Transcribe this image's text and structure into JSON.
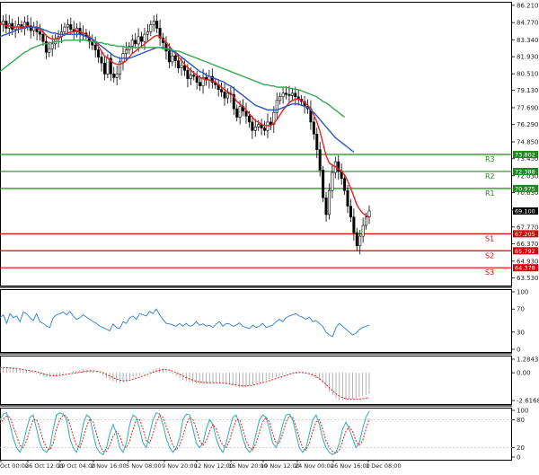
{
  "chart_data": {
    "type": "line",
    "colors": {
      "candle_bull": "#000000",
      "candle_bear": "#000000",
      "ma_fast": "#e8201e",
      "ma_mid": "#2a56c6",
      "ma_slow": "#35a852",
      "resistance": "#1d8a1d",
      "support": "#e00000",
      "rsi": "#2a7fd4",
      "macd_hist": "#a8a8a8",
      "macd_signal": "#e02020",
      "stoch_k": "#2ab0b0",
      "stoch_d": "#e02020",
      "current_price": "#000000"
    },
    "price_axis": {
      "ylim": [
        62.9,
        86.5
      ],
      "ticks": [
        "86.210",
        "84.770",
        "83.340",
        "81.930",
        "80.510",
        "79.130",
        "77.690",
        "76.290",
        "74.850",
        "73.450",
        "72.030",
        "70.630",
        "69.190",
        "67.770",
        "66.370",
        "64.930",
        "63.530"
      ]
    },
    "x_axis": {
      "tick_labels": [
        "Oct 00:00",
        "26 Oct 12:00",
        "29 Oct 04:00",
        "2 Nov 16:00",
        "5 Nov 08:00",
        "9 Nov 20:00",
        "12 Nov 12:00",
        "16 Nov 20:00",
        "19 Nov 12:00",
        "24 Nov 00:00",
        "26 Nov 16:00",
        "1 Dec 08:00"
      ]
    },
    "current_price": {
      "label": "69.100",
      "value": 69.1
    },
    "levels": [
      {
        "name": "R3",
        "value": 73.802,
        "label": "73.802",
        "kind": "resistance"
      },
      {
        "name": "R2",
        "value": 72.388,
        "label": "72.388",
        "kind": "resistance"
      },
      {
        "name": "R1",
        "value": 70.975,
        "label": "70.975",
        "kind": "resistance"
      },
      {
        "name": "S1",
        "value": 67.205,
        "label": "67.205",
        "kind": "support"
      },
      {
        "name": "S2",
        "value": 65.792,
        "label": "65.792",
        "kind": "support"
      },
      {
        "name": "S3",
        "value": 64.378,
        "label": "64.378",
        "kind": "support"
      }
    ],
    "series": [
      {
        "name": "price",
        "values": [
          84.6,
          84.9,
          84.3,
          84.7,
          84.2,
          84.4,
          84.6,
          84.3,
          84.8,
          84.5,
          84.1,
          84.4,
          84.0,
          83.8,
          83.2,
          82.3,
          82.6,
          83.0,
          83.4,
          83.6,
          84.0,
          84.4,
          84.6,
          84.2,
          84.0,
          84.3,
          83.8,
          83.9,
          83.6,
          83.2,
          82.9,
          82.5,
          81.9,
          81.4,
          80.5,
          81.8,
          80.5,
          80.2,
          80.5,
          81.5,
          82.2,
          82.5,
          82.8,
          83.3,
          83.0,
          83.6,
          83.2,
          83.8,
          84.0,
          84.6,
          84.9,
          84.3,
          83.5,
          83.1,
          82.4,
          81.5,
          82.0,
          81.6,
          81.0,
          81.2,
          80.8,
          80.1,
          80.4,
          80.3,
          79.8,
          79.5,
          80.2,
          80.0,
          80.3,
          79.8,
          79.6,
          79.2,
          79.0,
          78.5,
          78.9,
          78.8,
          77.6,
          76.9,
          77.8,
          77.4,
          77.0,
          76.5,
          75.8,
          76.1,
          76.3,
          76.0,
          75.8,
          76.5,
          76.3,
          77.3,
          78.3,
          78.6,
          78.9,
          78.8,
          78.7,
          78.9,
          78.6,
          78.4,
          78.2,
          77.8,
          77.6,
          76.5,
          75.5,
          74.2,
          72.5,
          70.2,
          68.8,
          70.8,
          72.3,
          73.2,
          72.4,
          71.8,
          70.8,
          69.5,
          68.6,
          67.3,
          66.2,
          67.0,
          67.9,
          68.6,
          69.1
        ]
      },
      {
        "name": "ma_fast",
        "values": [
          84.7,
          84.6,
          84.5,
          84.5,
          84.4,
          84.4,
          84.4,
          84.4,
          84.4,
          84.5,
          84.4,
          84.4,
          84.3,
          84.2,
          84.0,
          83.7,
          83.5,
          83.4,
          83.4,
          83.5,
          83.6,
          83.8,
          83.9,
          84.0,
          84.0,
          84.1,
          84.0,
          83.9,
          83.8,
          83.6,
          83.4,
          83.1,
          82.8,
          82.4,
          82.0,
          81.8,
          81.6,
          81.4,
          81.3,
          81.3,
          81.4,
          81.6,
          81.9,
          82.2,
          82.4,
          82.6,
          82.8,
          83.0,
          83.2,
          83.4,
          83.6,
          83.7,
          83.6,
          83.4,
          83.1,
          82.8,
          82.5,
          82.2,
          81.9,
          81.6,
          81.3,
          81.0,
          80.8,
          80.6,
          80.4,
          80.2,
          80.1,
          80.0,
          80.0,
          79.9,
          79.8,
          79.6,
          79.4,
          79.2,
          79.0,
          78.9,
          78.6,
          78.2,
          78.0,
          77.8,
          77.5,
          77.2,
          76.9,
          76.6,
          76.5,
          76.3,
          76.2,
          76.2,
          76.2,
          76.4,
          76.7,
          77.1,
          77.5,
          77.8,
          78.1,
          78.3,
          78.4,
          78.4,
          78.3,
          78.1,
          77.9,
          77.6,
          77.1,
          76.5,
          75.7,
          74.7,
          73.7,
          73.1,
          72.9,
          72.8,
          72.6,
          72.4,
          72.1,
          71.6,
          71.0,
          70.3,
          69.6,
          69.2,
          68.9,
          68.7,
          68.6
        ]
      },
      {
        "name": "ma_mid",
        "values": [
          83.6,
          83.7,
          83.8,
          83.9,
          84.0,
          84.1,
          84.2,
          84.3,
          84.3,
          84.4,
          84.4,
          84.4,
          84.4,
          84.3,
          84.2,
          84.1,
          84.0,
          83.9,
          83.9,
          83.8,
          83.8,
          83.8,
          83.8,
          83.8,
          83.8,
          83.8,
          83.8,
          83.7,
          83.6,
          83.5,
          83.4,
          83.2,
          83.0,
          82.8,
          82.6,
          82.4,
          82.2,
          82.0,
          81.9,
          81.8,
          81.8,
          81.8,
          81.8,
          81.9,
          82.0,
          82.1,
          82.2,
          82.3,
          82.4,
          82.5,
          82.6,
          82.7,
          82.7,
          82.7,
          82.6,
          82.5,
          82.4,
          82.3,
          82.1,
          81.9,
          81.7,
          81.5,
          81.3,
          81.1,
          80.9,
          80.7,
          80.6,
          80.4,
          80.3,
          80.2,
          80.1,
          80.0,
          79.9,
          79.8,
          79.6,
          79.5,
          79.3,
          79.1,
          78.9,
          78.7,
          78.5,
          78.3,
          78.1,
          77.9,
          77.8,
          77.7,
          77.6,
          77.5,
          77.5,
          77.5,
          77.5,
          77.6,
          77.7,
          77.8,
          77.9,
          78.0,
          78.0,
          78.0,
          77.9,
          77.8,
          77.7,
          77.5,
          77.3,
          77.0,
          76.7,
          76.4,
          76.1,
          75.8,
          75.5,
          75.2,
          75.0,
          74.8,
          74.6,
          74.4,
          74.2,
          74.0
        ]
      },
      {
        "name": "ma_slow",
        "values": [
          80.7,
          80.9,
          81.1,
          81.3,
          81.5,
          81.7,
          81.9,
          82.1,
          82.3,
          82.4,
          82.6,
          82.7,
          82.8,
          82.9,
          83.0,
          83.0,
          83.1,
          83.1,
          83.2,
          83.2,
          83.2,
          83.3,
          83.3,
          83.3,
          83.3,
          83.3,
          83.3,
          83.3,
          83.3,
          83.2,
          83.2,
          83.2,
          83.1,
          83.1,
          83.0,
          83.0,
          82.9,
          82.9,
          82.8,
          82.8,
          82.8,
          82.7,
          82.7,
          82.7,
          82.7,
          82.7,
          82.7,
          82.7,
          82.7,
          82.7,
          82.7,
          82.7,
          82.7,
          82.6,
          82.6,
          82.6,
          82.5,
          82.4,
          82.4,
          82.3,
          82.2,
          82.1,
          82.0,
          81.9,
          81.8,
          81.7,
          81.6,
          81.5,
          81.4,
          81.3,
          81.2,
          81.1,
          81.0,
          80.9,
          80.8,
          80.7,
          80.6,
          80.5,
          80.4,
          80.3,
          80.2,
          80.1,
          80.0,
          79.9,
          79.8,
          79.7,
          79.6,
          79.6,
          79.5,
          79.5,
          79.4,
          79.4,
          79.4,
          79.4,
          79.3,
          79.3,
          79.2,
          79.2,
          79.1,
          79.0,
          78.9,
          78.8,
          78.7,
          78.6,
          78.4,
          78.2,
          78.1,
          77.9,
          77.7,
          77.5,
          77.3,
          77.1,
          76.9
        ]
      }
    ],
    "rsi": {
      "axis_labels": [
        "100",
        "70",
        "30",
        "0"
      ],
      "range": [
        0,
        100
      ],
      "values": [
        55,
        60,
        45,
        62,
        55,
        58,
        48,
        65,
        62,
        55,
        50,
        62,
        48,
        45,
        40,
        38,
        55,
        60,
        62,
        65,
        60,
        66,
        58,
        52,
        55,
        60,
        56,
        52,
        48,
        45,
        40,
        38,
        35,
        32,
        44,
        38,
        36,
        48,
        45,
        55,
        58,
        52,
        62,
        60,
        58,
        66,
        62,
        70,
        60,
        52,
        45,
        44,
        42,
        40,
        45,
        40,
        45,
        40,
        42,
        48,
        42,
        44,
        40,
        42,
        38,
        44,
        48,
        40,
        45,
        44,
        40,
        42,
        46,
        40,
        38,
        36,
        42,
        38,
        40,
        45,
        38,
        40,
        42,
        48,
        52,
        48,
        55,
        58,
        60,
        62,
        58,
        56,
        52,
        56,
        48,
        50,
        45,
        40,
        30,
        25,
        22,
        38,
        45,
        40,
        35,
        30,
        25,
        28,
        34,
        38,
        40,
        42
      ]
    },
    "macd": {
      "axis_labels": [
        "1.2843",
        "0.00",
        "-2.6168"
      ],
      "range": [
        -2.6168,
        1.2843
      ],
      "hist": [
        0.6,
        0.55,
        0.5,
        0.45,
        0.4,
        0.35,
        0.3,
        0.3,
        0.25,
        0.2,
        0.1,
        -0.1,
        -0.2,
        -0.3,
        -0.4,
        -0.4,
        -0.35,
        -0.3,
        -0.2,
        -0.1,
        -0.05,
        0.05,
        0.1,
        0.2,
        0.25,
        0.3,
        0.3,
        0.25,
        0.2,
        0.1,
        -0.1,
        -0.3,
        -0.5,
        -0.6,
        -0.8,
        -0.9,
        -1.0,
        -0.9,
        -0.8,
        -0.6,
        -0.4,
        -0.3,
        -0.2,
        -0.1,
        0.05,
        0.15,
        0.3,
        0.4,
        0.5,
        0.4,
        0.3,
        0.1,
        -0.1,
        -0.3,
        -0.5,
        -0.7,
        -0.8,
        -0.9,
        -0.95,
        -1.0,
        -1.05,
        -1.05,
        -1.0,
        -0.95,
        -0.9,
        -0.9,
        -0.95,
        -1.0,
        -1.05,
        -1.1,
        -1.2,
        -1.3,
        -1.4,
        -1.4,
        -1.3,
        -1.2,
        -1.1,
        -1.0,
        -0.9,
        -0.8,
        -0.7,
        -0.6,
        -0.5,
        -0.4,
        -0.3,
        -0.2,
        -0.1,
        -0.05,
        0.05,
        0.1,
        0.15,
        0.1,
        0.05,
        -0.1,
        -0.3,
        -0.5,
        -0.7,
        -1.0,
        -1.4,
        -1.8,
        -2.1,
        -2.4,
        -2.6,
        -2.6,
        -2.55,
        -2.5,
        -2.45,
        -2.4,
        -2.3,
        -2.2,
        -2.1,
        -2.0
      ],
      "signal": [
        0.5,
        0.5,
        0.48,
        0.45,
        0.42,
        0.4,
        0.35,
        0.3,
        0.25,
        0.2,
        0.15,
        0.1,
        0.0,
        -0.1,
        -0.2,
        -0.25,
        -0.28,
        -0.28,
        -0.25,
        -0.2,
        -0.15,
        -0.1,
        -0.05,
        0.0,
        0.05,
        0.1,
        0.15,
        0.18,
        0.18,
        0.15,
        0.1,
        0.0,
        -0.15,
        -0.3,
        -0.45,
        -0.6,
        -0.7,
        -0.75,
        -0.75,
        -0.7,
        -0.6,
        -0.5,
        -0.4,
        -0.3,
        -0.2,
        -0.1,
        0.05,
        0.15,
        0.25,
        0.3,
        0.3,
        0.25,
        0.15,
        0.0,
        -0.15,
        -0.3,
        -0.45,
        -0.6,
        -0.7,
        -0.8,
        -0.85,
        -0.9,
        -0.95,
        -0.95,
        -0.95,
        -0.95,
        -0.95,
        -0.97,
        -1.0,
        -1.05,
        -1.1,
        -1.15,
        -1.2,
        -1.25,
        -1.25,
        -1.22,
        -1.18,
        -1.1,
        -1.0,
        -0.92,
        -0.85,
        -0.75,
        -0.65,
        -0.55,
        -0.45,
        -0.35,
        -0.25,
        -0.15,
        -0.05,
        0.0,
        0.02,
        0.02,
        -0.02,
        -0.1,
        -0.2,
        -0.35,
        -0.55,
        -0.8,
        -1.1,
        -1.4,
        -1.7,
        -2.0,
        -2.2,
        -2.35,
        -2.45,
        -2.5,
        -2.5,
        -2.5,
        -2.48,
        -2.45,
        -2.4,
        -2.35
      ]
    },
    "stochastic": {
      "axis_labels": [
        "100",
        "80",
        "20",
        "0"
      ],
      "range": [
        0,
        100
      ],
      "k": [
        80,
        92,
        95,
        70,
        40,
        20,
        10,
        30,
        60,
        85,
        90,
        60,
        30,
        15,
        10,
        20,
        60,
        90,
        95,
        92,
        80,
        40,
        20,
        10,
        30,
        70,
        90,
        85,
        50,
        20,
        10,
        5,
        20,
        50,
        70,
        50,
        20,
        10,
        30,
        70,
        90,
        85,
        60,
        30,
        20,
        50,
        80,
        95,
        92,
        70,
        40,
        20,
        10,
        20,
        40,
        80,
        92,
        90,
        60,
        30,
        20,
        30,
        60,
        80,
        70,
        40,
        20,
        10,
        30,
        60,
        85,
        90,
        70,
        40,
        20,
        10,
        20,
        50,
        80,
        90,
        85,
        60,
        30,
        20,
        40,
        70,
        90,
        92,
        80,
        50,
        20,
        10,
        20,
        50,
        80,
        90,
        70,
        40,
        20,
        10,
        5,
        10,
        30,
        60,
        75,
        60,
        40,
        20,
        30,
        60,
        85,
        98
      ],
      "d": [
        70,
        82,
        88,
        85,
        65,
        45,
        25,
        20,
        35,
        60,
        80,
        80,
        60,
        35,
        20,
        15,
        30,
        60,
        80,
        90,
        88,
        70,
        45,
        25,
        20,
        40,
        65,
        82,
        75,
        50,
        25,
        12,
        12,
        25,
        45,
        55,
        45,
        25,
        20,
        35,
        60,
        80,
        80,
        60,
        35,
        30,
        50,
        75,
        90,
        85,
        65,
        45,
        25,
        15,
        25,
        45,
        70,
        85,
        80,
        60,
        35,
        25,
        35,
        55,
        70,
        60,
        40,
        25,
        20,
        35,
        60,
        80,
        80,
        60,
        35,
        20,
        15,
        30,
        55,
        75,
        85,
        75,
        50,
        30,
        30,
        50,
        75,
        88,
        85,
        65,
        40,
        20,
        15,
        30,
        55,
        75,
        80,
        60,
        35,
        20,
        12,
        8,
        15,
        35,
        55,
        65,
        55,
        35,
        25,
        35,
        60,
        82
      ]
    }
  }
}
